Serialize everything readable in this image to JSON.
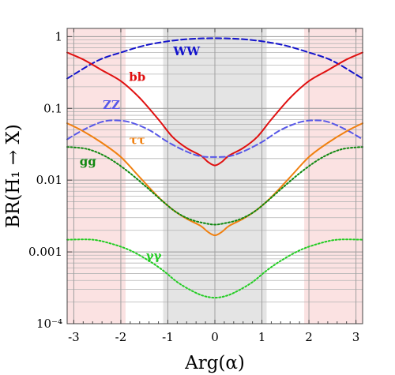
{
  "chart_data": {
    "type": "line",
    "xlabel": "Arg(α)",
    "ylabel": "BR(H₁ → X)",
    "xlim": [
      -3.1416,
      3.1416
    ],
    "ylim": [
      0.0001,
      1.3
    ],
    "yscale": "log",
    "grid": "y-minor",
    "x_ticks": [
      "-3",
      "-2",
      "-1",
      "0",
      "1",
      "2",
      "3"
    ],
    "y_ticks": [
      "1",
      "0.1",
      "0.01",
      "0.001",
      "10⁻⁴"
    ],
    "shaded_regions": [
      {
        "x": [
          -3.1416,
          -1.9
        ],
        "color": "#fbe2e2"
      },
      {
        "x": [
          1.9,
          3.1416
        ],
        "color": "#fbe2e2"
      },
      {
        "x": [
          -1.1,
          1.1
        ],
        "color": "#e4e4e4"
      }
    ],
    "series": [
      {
        "name": "WW",
        "color": "#1313cc",
        "dash": "dashed",
        "points": [
          [
            -3.1416,
            0.26
          ],
          [
            -2.5,
            0.46
          ],
          [
            -2.0,
            0.6
          ],
          [
            -1.5,
            0.75
          ],
          [
            -1.0,
            0.86
          ],
          [
            -0.5,
            0.93
          ],
          [
            0,
            0.95
          ],
          [
            0.5,
            0.93
          ],
          [
            1.0,
            0.86
          ],
          [
            1.5,
            0.75
          ],
          [
            2.0,
            0.6
          ],
          [
            2.5,
            0.46
          ],
          [
            3.1416,
            0.26
          ]
        ]
      },
      {
        "name": "bb",
        "color": "#e01010",
        "dash": "solid",
        "points": [
          [
            -3.1416,
            0.6
          ],
          [
            -2.8,
            0.48
          ],
          [
            -2.4,
            0.34
          ],
          [
            -2.0,
            0.24
          ],
          [
            -1.6,
            0.14
          ],
          [
            -1.2,
            0.07
          ],
          [
            -0.9,
            0.04
          ],
          [
            -0.6,
            0.028
          ],
          [
            -0.3,
            0.022
          ],
          [
            -0.15,
            0.018
          ],
          [
            0,
            0.016
          ],
          [
            0.15,
            0.018
          ],
          [
            0.3,
            0.022
          ],
          [
            0.6,
            0.028
          ],
          [
            0.9,
            0.04
          ],
          [
            1.2,
            0.07
          ],
          [
            1.6,
            0.14
          ],
          [
            2.0,
            0.24
          ],
          [
            2.4,
            0.34
          ],
          [
            2.8,
            0.48
          ],
          [
            3.1416,
            0.6
          ]
        ]
      },
      {
        "name": "ZZ",
        "color": "#5858e8",
        "dash": "dashed",
        "points": [
          [
            -3.1416,
            0.037
          ],
          [
            -2.8,
            0.05
          ],
          [
            -2.4,
            0.065
          ],
          [
            -2.1,
            0.068
          ],
          [
            -1.8,
            0.064
          ],
          [
            -1.4,
            0.05
          ],
          [
            -1.0,
            0.034
          ],
          [
            -0.6,
            0.025
          ],
          [
            -0.3,
            0.0215
          ],
          [
            0,
            0.021
          ],
          [
            0.3,
            0.0215
          ],
          [
            0.6,
            0.025
          ],
          [
            1.0,
            0.034
          ],
          [
            1.4,
            0.05
          ],
          [
            1.8,
            0.064
          ],
          [
            2.1,
            0.068
          ],
          [
            2.4,
            0.065
          ],
          [
            2.8,
            0.05
          ],
          [
            3.1416,
            0.037
          ]
        ]
      },
      {
        "name": "ττ",
        "color": "#f08010",
        "dash": "solid",
        "points": [
          [
            -3.1416,
            0.062
          ],
          [
            -2.8,
            0.048
          ],
          [
            -2.4,
            0.033
          ],
          [
            -2.0,
            0.021
          ],
          [
            -1.6,
            0.011
          ],
          [
            -1.2,
            0.0058
          ],
          [
            -0.9,
            0.0039
          ],
          [
            -0.6,
            0.0029
          ],
          [
            -0.3,
            0.0023
          ],
          [
            -0.15,
            0.0019
          ],
          [
            0,
            0.0017
          ],
          [
            0.15,
            0.0019
          ],
          [
            0.3,
            0.0023
          ],
          [
            0.6,
            0.0029
          ],
          [
            0.9,
            0.0039
          ],
          [
            1.2,
            0.0058
          ],
          [
            1.6,
            0.011
          ],
          [
            2.0,
            0.021
          ],
          [
            2.4,
            0.033
          ],
          [
            2.8,
            0.048
          ],
          [
            3.1416,
            0.062
          ]
        ]
      },
      {
        "name": "gg",
        "color": "#108810",
        "dash": "dotted",
        "points": [
          [
            -3.1416,
            0.029
          ],
          [
            -2.7,
            0.027
          ],
          [
            -2.3,
            0.021
          ],
          [
            -1.9,
            0.014
          ],
          [
            -1.5,
            0.0085
          ],
          [
            -1.1,
            0.005
          ],
          [
            -0.8,
            0.0035
          ],
          [
            -0.5,
            0.0028
          ],
          [
            -0.2,
            0.0025
          ],
          [
            0,
            0.0024
          ],
          [
            0.2,
            0.0025
          ],
          [
            0.5,
            0.0028
          ],
          [
            0.8,
            0.0035
          ],
          [
            1.1,
            0.005
          ],
          [
            1.5,
            0.0085
          ],
          [
            1.9,
            0.014
          ],
          [
            2.3,
            0.021
          ],
          [
            2.7,
            0.027
          ],
          [
            3.1416,
            0.029
          ]
        ]
      },
      {
        "name": "γγ",
        "color": "#22cc22",
        "dash": "dotted",
        "points": [
          [
            -3.1416,
            0.00148
          ],
          [
            -2.6,
            0.00148
          ],
          [
            -2.2,
            0.0013
          ],
          [
            -1.8,
            0.00105
          ],
          [
            -1.4,
            0.00075
          ],
          [
            -1.1,
            0.00055
          ],
          [
            -0.8,
            0.00038
          ],
          [
            -0.5,
            0.00029
          ],
          [
            -0.25,
            0.000245
          ],
          [
            0,
            0.00023
          ],
          [
            0.25,
            0.000245
          ],
          [
            0.5,
            0.00029
          ],
          [
            0.8,
            0.00038
          ],
          [
            1.1,
            0.00055
          ],
          [
            1.4,
            0.00075
          ],
          [
            1.8,
            0.00105
          ],
          [
            2.2,
            0.0013
          ],
          [
            2.6,
            0.00148
          ],
          [
            3.1416,
            0.00148
          ]
        ]
      }
    ],
    "annotations": [
      {
        "text": "WW",
        "series": "WW",
        "x": -0.6,
        "y": 0.55
      },
      {
        "text": "bb",
        "series": "bb",
        "x": -1.65,
        "y": 0.24
      },
      {
        "text": "ZZ",
        "series": "ZZ",
        "x": -2.2,
        "y": 0.098
      },
      {
        "text": "ττ",
        "series": "ττ",
        "x": -1.65,
        "y": 0.032
      },
      {
        "text": "gg",
        "series": "gg",
        "x": -2.7,
        "y": 0.016
      },
      {
        "text": "γγ",
        "series": "γγ",
        "x": -1.3,
        "y": 0.00078
      }
    ]
  }
}
